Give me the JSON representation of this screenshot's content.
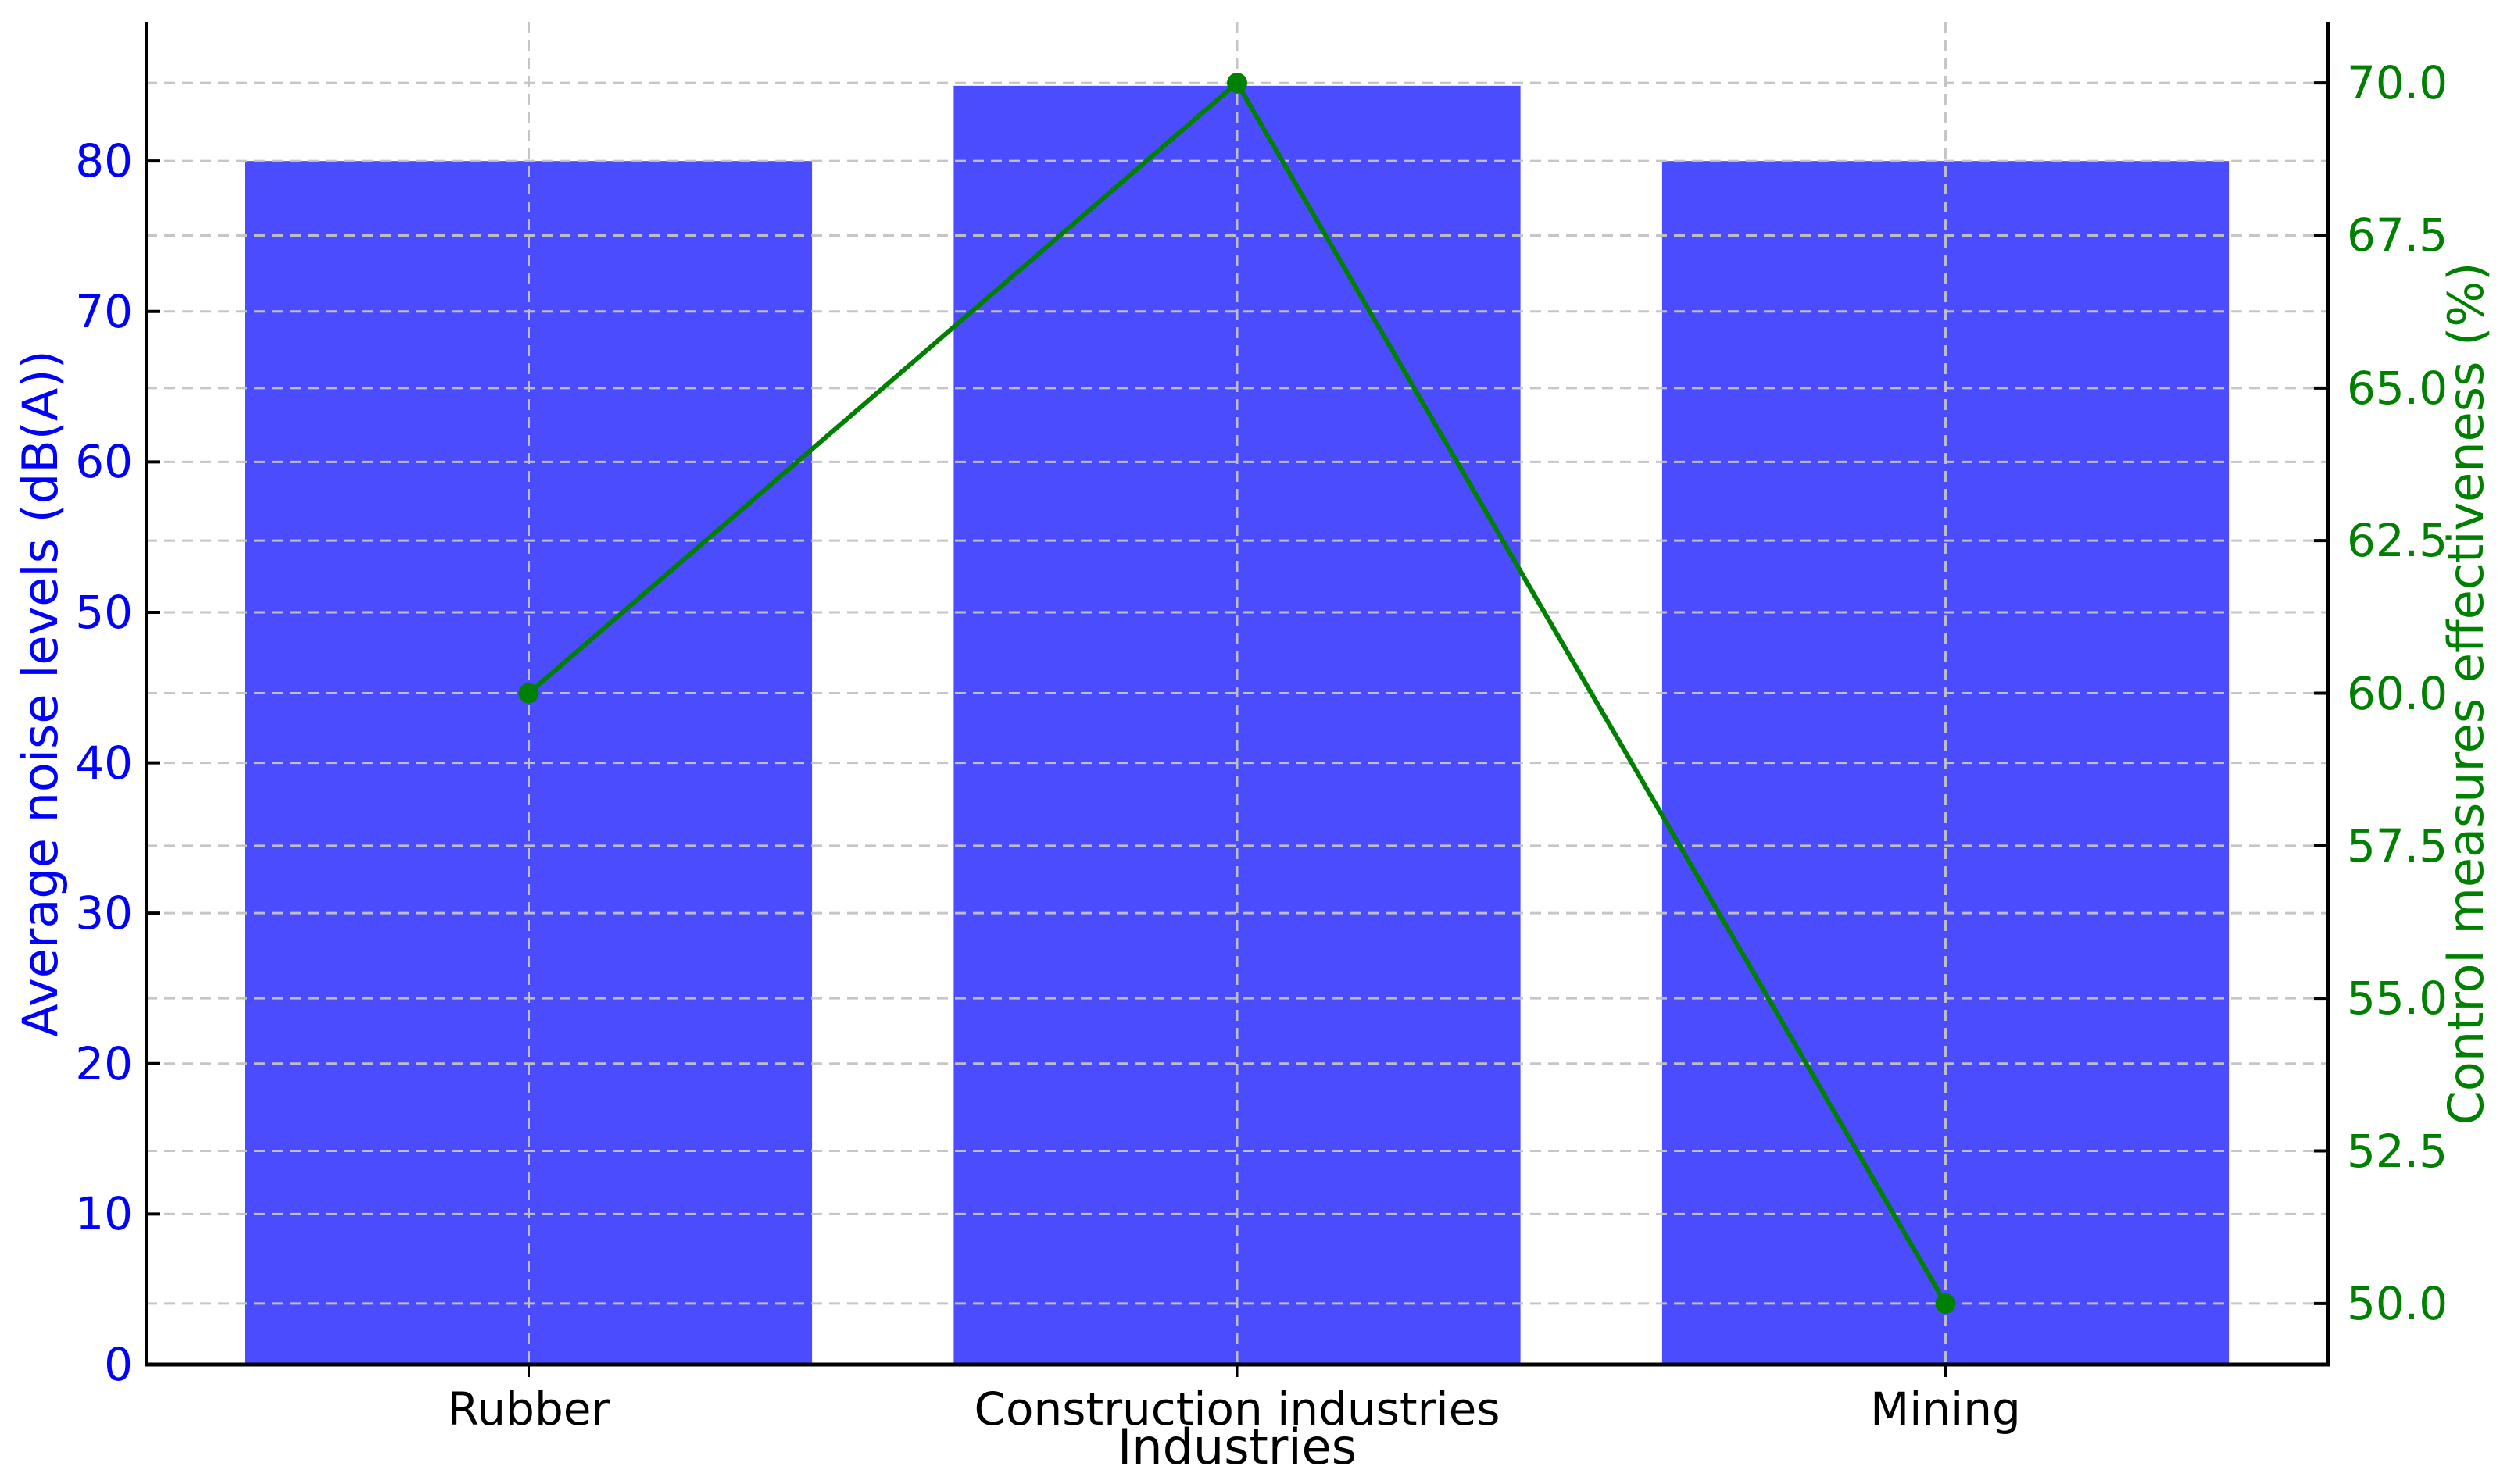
{
  "chart_data": {
    "type": "bar+line dual-axis",
    "title": "",
    "categories": [
      "Rubber",
      "Construction industries",
      "Mining"
    ],
    "series": [
      {
        "name": "Average noise levels (dB(A))",
        "type": "bar",
        "axis": "left",
        "values": [
          80,
          85,
          80
        ],
        "color": "#0000ff",
        "alpha": 0.7
      },
      {
        "name": "Control measures effectiveness (%)",
        "type": "line",
        "axis": "right",
        "values": [
          60,
          70,
          50
        ],
        "color": "#008000",
        "marker": "circle"
      }
    ],
    "xlabel": "Industries",
    "ylabel_left": "Average noise levels (dB(A))",
    "ylabel_right": "Control measures effectiveness (%)",
    "left_axis": {
      "color": "#0000ff",
      "lim": [
        0,
        89.25
      ],
      "ticks": [
        0,
        10,
        20,
        30,
        40,
        50,
        60,
        70,
        80
      ],
      "tick_labels": [
        "0",
        "10",
        "20",
        "30",
        "40",
        "50",
        "60",
        "70",
        "80"
      ]
    },
    "right_axis": {
      "color": "#008000",
      "lim": [
        49,
        71
      ],
      "ticks": [
        50,
        52.5,
        55,
        57.5,
        60,
        62.5,
        65,
        67.5,
        70
      ],
      "tick_labels": [
        "50.0",
        "52.5",
        "55.0",
        "57.5",
        "60.0",
        "62.5",
        "65.0",
        "67.5",
        "70.0"
      ]
    },
    "grid": {
      "on": true,
      "style": "dashed",
      "color": "#c3c3c3",
      "vertical_at_categories": true
    },
    "bar_width_fraction": 0.8,
    "x_margin_units": 0.54,
    "legend_position": "none"
  }
}
